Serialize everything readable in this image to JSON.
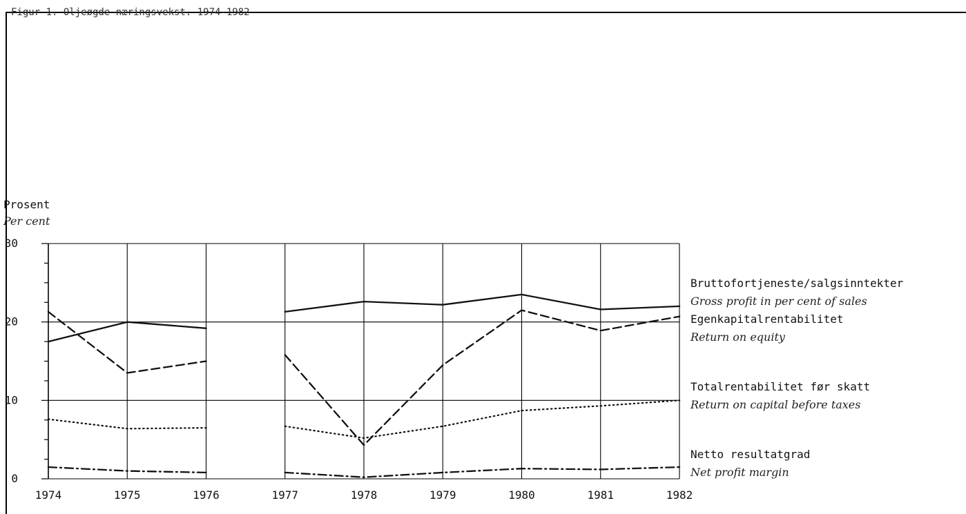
{
  "header": {
    "caption": "Figur 1. Oljeøgde næringsvekst. 1974-1982"
  },
  "chart_data": {
    "type": "line",
    "ylabel": "Prosent",
    "ylabel_en": "Per cent",
    "xlabel": "",
    "ylim": [
      0,
      30
    ],
    "y_ticks": [
      "0",
      "10",
      "20",
      "30"
    ],
    "y_minor_step": 2.5,
    "x": [
      "1974",
      "1975",
      "1976",
      "1977",
      "1978",
      "1979",
      "1980",
      "1981",
      "1982"
    ],
    "grid": true,
    "legend_placement": "right, beside line ends",
    "series": [
      {
        "name": "Bruttofortjeneste/salgsinntekter",
        "name_en": "Gross profit in per cent of sales",
        "style": "solid",
        "values": [
          17.5,
          20.0,
          19.2,
          21.3,
          22.6,
          22.2,
          23.5,
          21.6,
          22.0
        ]
      },
      {
        "name": "Egenkapitalrentabilitet",
        "name_en": "Return on equity",
        "style": "dashed",
        "values": [
          21.3,
          13.5,
          15.0,
          15.8,
          4.3,
          14.5,
          21.5,
          18.9,
          20.7
        ]
      },
      {
        "name": "Totalrentabilitet før skatt",
        "name_en": "Return on capital before taxes",
        "style": "dotted",
        "values": [
          7.6,
          6.4,
          6.5,
          6.7,
          5.2,
          6.7,
          8.7,
          9.3,
          10.0
        ]
      },
      {
        "name": "Netto resultatgrad",
        "name_en": "Net profit margin",
        "style": "dashdot",
        "values": [
          1.5,
          1.0,
          0.8,
          0.8,
          0.2,
          0.8,
          1.3,
          1.2,
          1.5
        ]
      }
    ],
    "gap_between": [
      "1976",
      "1977"
    ],
    "colors": {
      "line": "#111111",
      "grid": "#000000",
      "background": "#ffffff"
    }
  }
}
